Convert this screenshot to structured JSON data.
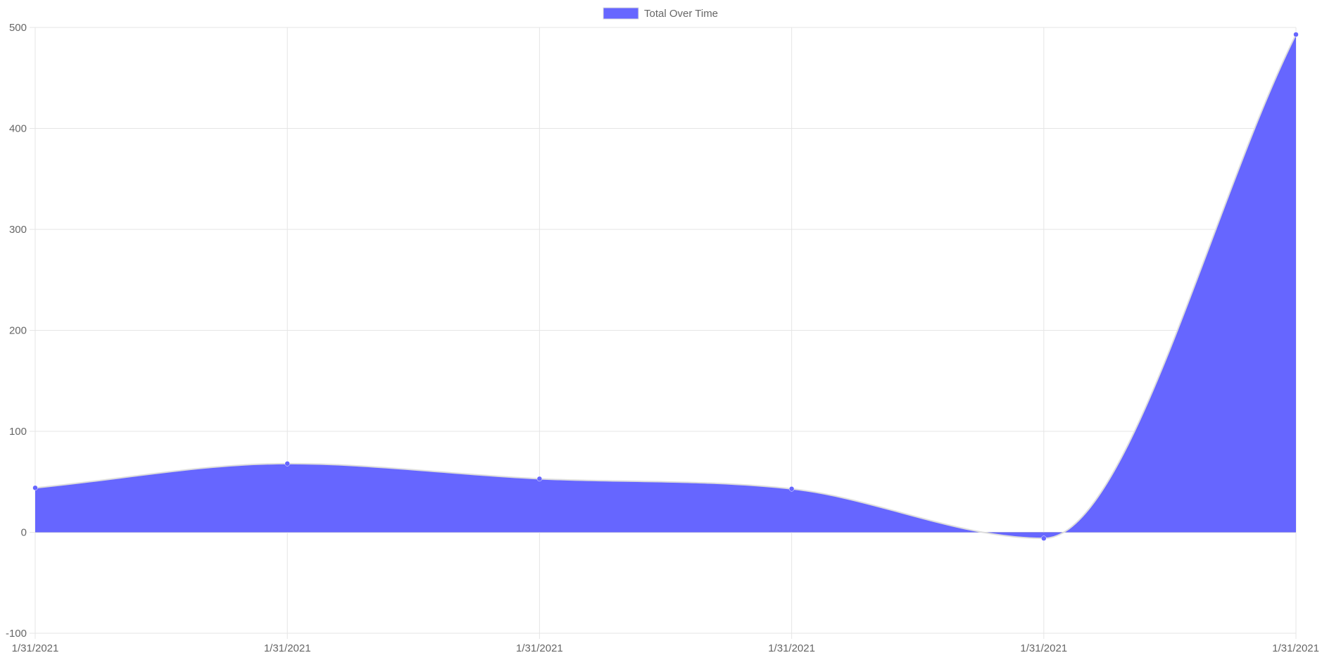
{
  "chart_data": {
    "type": "area",
    "categories": [
      "1/31/2021",
      "1/31/2021",
      "1/31/2021",
      "1/31/2021",
      "1/31/2021",
      "1/31/2021"
    ],
    "series": [
      {
        "name": "Total Over Time",
        "values": [
          44,
          68,
          53,
          43,
          -6,
          493
        ],
        "color": "#6666ff",
        "line_color": "#dddddd"
      }
    ],
    "y_ticks": [
      500,
      400,
      300,
      200,
      100,
      0,
      -100
    ],
    "ylim": [
      -100,
      500
    ],
    "grid": true,
    "grid_color": "#e5e5e5",
    "legend_position": "top-center",
    "smooth": true
  }
}
